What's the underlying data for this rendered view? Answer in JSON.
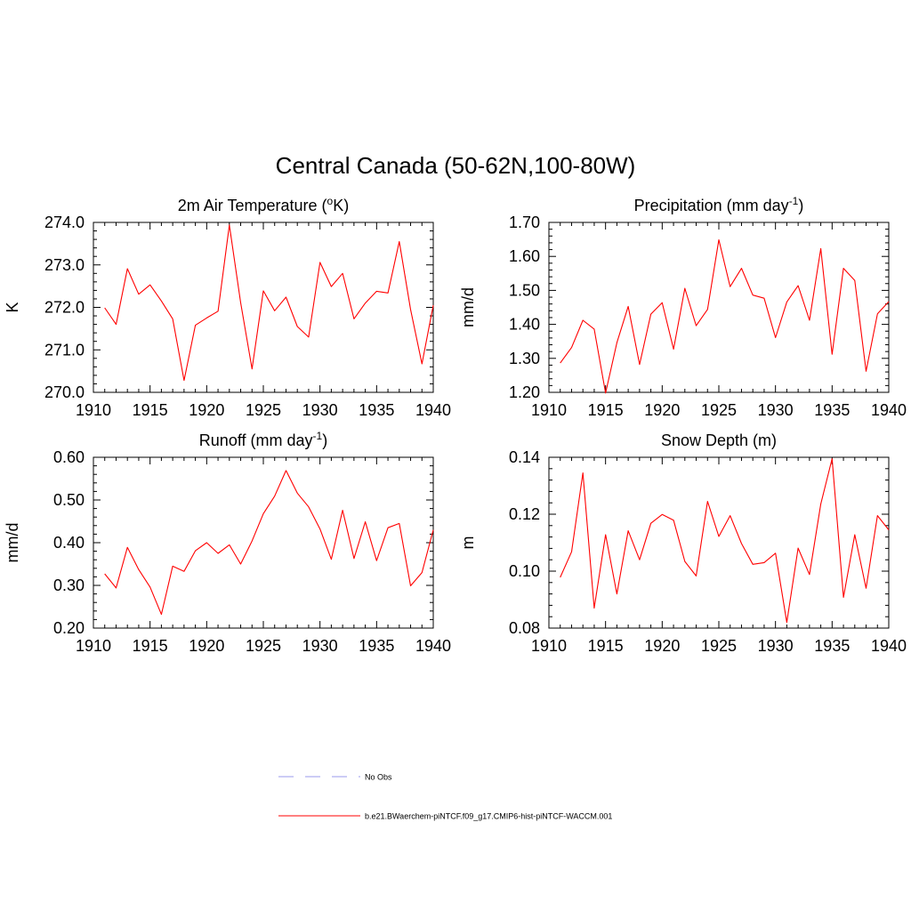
{
  "figure": {
    "title": "Central Canada (50-62N,100-80W)"
  },
  "chart_data": [
    {
      "type": "line",
      "title": "2m Air Temperature (",
      "title_sup": "o",
      "title_after": "K)",
      "ylabel": "K",
      "xlim": [
        1910,
        1940
      ],
      "ylim": [
        270.0,
        274.0
      ],
      "xticks": [
        "1910",
        "1915",
        "1920",
        "1925",
        "1930",
        "1935",
        "1940"
      ],
      "yticks": [
        "270.0",
        "271.0",
        "272.0",
        "273.0",
        "274.0"
      ],
      "x": [
        1911,
        1912,
        1913,
        1914,
        1915,
        1916,
        1917,
        1918,
        1919,
        1920,
        1921,
        1922,
        1923,
        1924,
        1925,
        1926,
        1927,
        1928,
        1929,
        1930,
        1931,
        1932,
        1933,
        1934,
        1935,
        1936,
        1937,
        1938,
        1939,
        1940
      ],
      "series": [
        {
          "color": "#ff0000",
          "values": [
            271.99,
            271.6,
            272.91,
            272.31,
            272.53,
            272.15,
            271.73,
            270.28,
            271.58,
            271.75,
            271.91,
            273.94,
            272.11,
            270.55,
            272.39,
            271.92,
            272.24,
            271.55,
            271.3,
            273.06,
            272.49,
            272.8,
            271.73,
            272.1,
            272.38,
            272.34,
            273.55,
            271.95,
            270.67,
            272.05
          ]
        }
      ]
    },
    {
      "type": "line",
      "title": "Precipitation (mm day",
      "title_sup": "-1",
      "title_after": ")",
      "ylabel": "mm/d",
      "xlim": [
        1910,
        1940
      ],
      "ylim": [
        1.2,
        1.7
      ],
      "xticks": [
        "1910",
        "1915",
        "1920",
        "1925",
        "1930",
        "1935",
        "1940"
      ],
      "yticks": [
        "1.20",
        "1.30",
        "1.40",
        "1.50",
        "1.60",
        "1.70"
      ],
      "x": [
        1911,
        1912,
        1913,
        1914,
        1915,
        1916,
        1917,
        1918,
        1919,
        1920,
        1921,
        1922,
        1923,
        1924,
        1925,
        1926,
        1927,
        1928,
        1929,
        1930,
        1931,
        1932,
        1933,
        1934,
        1935,
        1936,
        1937,
        1938,
        1939,
        1940
      ],
      "series": [
        {
          "color": "#ff0000",
          "values": [
            1.286,
            1.332,
            1.412,
            1.386,
            1.198,
            1.346,
            1.453,
            1.282,
            1.43,
            1.464,
            1.327,
            1.506,
            1.396,
            1.444,
            1.649,
            1.511,
            1.565,
            1.486,
            1.477,
            1.361,
            1.466,
            1.514,
            1.412,
            1.623,
            1.312,
            1.565,
            1.529,
            1.262,
            1.431,
            1.467
          ]
        }
      ]
    },
    {
      "type": "line",
      "title": "Runoff (mm day",
      "title_sup": "-1",
      "title_after": ")",
      "ylabel": "mm/d",
      "xlim": [
        1910,
        1940
      ],
      "ylim": [
        0.2,
        0.6
      ],
      "xticks": [
        "1910",
        "1915",
        "1920",
        "1925",
        "1930",
        "1935",
        "1940"
      ],
      "yticks": [
        "0.20",
        "0.30",
        "0.40",
        "0.50",
        "0.60"
      ],
      "x": [
        1911,
        1912,
        1913,
        1914,
        1915,
        1916,
        1917,
        1918,
        1919,
        1920,
        1921,
        1922,
        1923,
        1924,
        1925,
        1926,
        1927,
        1928,
        1929,
        1930,
        1931,
        1932,
        1933,
        1934,
        1935,
        1936,
        1937,
        1938,
        1939,
        1940
      ],
      "series": [
        {
          "color": "#ff0000",
          "values": [
            0.327,
            0.294,
            0.389,
            0.337,
            0.296,
            0.232,
            0.345,
            0.333,
            0.381,
            0.4,
            0.375,
            0.395,
            0.35,
            0.404,
            0.468,
            0.509,
            0.569,
            0.516,
            0.484,
            0.432,
            0.361,
            0.476,
            0.363,
            0.449,
            0.358,
            0.435,
            0.445,
            0.299,
            0.33,
            0.43
          ]
        }
      ]
    },
    {
      "type": "line",
      "title": "Snow Depth (m)",
      "title_sup": "",
      "title_after": "",
      "ylabel": "m",
      "xlim": [
        1910,
        1940
      ],
      "ylim": [
        0.08,
        0.14
      ],
      "xticks": [
        "1910",
        "1915",
        "1920",
        "1925",
        "1930",
        "1935",
        "1940"
      ],
      "yticks": [
        "0.08",
        "0.10",
        "0.12",
        "0.14"
      ],
      "x": [
        1911,
        1912,
        1913,
        1914,
        1915,
        1916,
        1917,
        1918,
        1919,
        1920,
        1921,
        1922,
        1923,
        1924,
        1925,
        1926,
        1927,
        1928,
        1929,
        1930,
        1931,
        1932,
        1933,
        1934,
        1935,
        1936,
        1937,
        1938,
        1939,
        1940
      ],
      "series": [
        {
          "color": "#ff0000",
          "values": [
            0.0978,
            0.1068,
            0.1345,
            0.087,
            0.1128,
            0.092,
            0.1142,
            0.104,
            0.1168,
            0.1199,
            0.1179,
            0.1034,
            0.0983,
            0.1245,
            0.1122,
            0.1195,
            0.1097,
            0.1024,
            0.103,
            0.1063,
            0.082,
            0.1081,
            0.0988,
            0.1236,
            0.1395,
            0.0908,
            0.1128,
            0.094,
            0.1195,
            0.1145
          ]
        }
      ]
    }
  ],
  "legend": [
    {
      "label": "No Obs",
      "color": "#9999ee",
      "dash": "dashed"
    },
    {
      "label": "b.e21.BWaerchem-piNTCF.f09_g17.CMIP6-hist-piNTCF-WACCM.001",
      "color": "#ff0000",
      "dash": "solid"
    }
  ]
}
